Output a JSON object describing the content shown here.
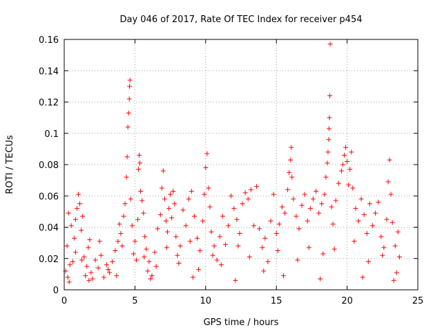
{
  "chart_data": {
    "type": "scatter",
    "title": "Day 046 of 2017, Rate Of TEC Index for receiver p454",
    "xlabel": "GPS time / hours",
    "ylabel": "ROTI / TECUs",
    "xlim": [
      0,
      25
    ],
    "ylim": [
      0,
      0.16
    ],
    "xticks": [
      0,
      5,
      10,
      15,
      20,
      25
    ],
    "yticks": [
      0,
      0.02,
      0.04,
      0.06,
      0.08,
      0.1,
      0.12,
      0.14,
      0.16
    ],
    "xtick_labels": [
      "0",
      "5",
      "10",
      "15",
      "20",
      "25"
    ],
    "ytick_labels": [
      "0",
      "0.02",
      "0.04",
      "0.06",
      "0.08",
      "0.1",
      "0.12",
      "0.14",
      "0.16"
    ],
    "grid": true,
    "marker": "+",
    "color": "#ff0000",
    "series": [
      {
        "name": "ROTI",
        "points": [
          [
            0.1,
            0.012
          ],
          [
            0.2,
            0.028
          ],
          [
            0.3,
            0.049
          ],
          [
            0.35,
            0.005
          ],
          [
            0.5,
            0.041
          ],
          [
            0.6,
            0.018
          ],
          [
            0.7,
            0.033
          ],
          [
            0.8,
            0.045
          ],
          [
            0.9,
            0.052
          ],
          [
            1.0,
            0.061
          ],
          [
            1.1,
            0.055
          ],
          [
            1.2,
            0.038
          ],
          [
            1.3,
            0.047
          ],
          [
            1.4,
            0.021
          ],
          [
            1.5,
            0.009
          ],
          [
            1.6,
            0.015
          ],
          [
            1.7,
            0.027
          ],
          [
            1.8,
            0.032
          ],
          [
            1.9,
            0.011
          ],
          [
            2.0,
            0.007
          ],
          [
            2.2,
            0.019
          ],
          [
            2.4,
            0.014
          ],
          [
            2.6,
            0.022
          ],
          [
            2.8,
            0.008
          ],
          [
            3.0,
            0.016
          ],
          [
            3.2,
            0.011
          ],
          [
            3.4,
            0.018
          ],
          [
            3.6,
            0.025
          ],
          [
            3.8,
            0.031
          ],
          [
            3.9,
            0.042
          ],
          [
            4.0,
            0.036
          ],
          [
            4.1,
            0.028
          ],
          [
            4.2,
            0.047
          ],
          [
            4.3,
            0.055
          ],
          [
            4.4,
            0.072
          ],
          [
            4.45,
            0.085
          ],
          [
            4.5,
            0.104
          ],
          [
            4.55,
            0.113
          ],
          [
            4.6,
            0.122
          ],
          [
            4.62,
            0.13
          ],
          [
            4.65,
            0.134
          ],
          [
            4.7,
            0.058
          ],
          [
            4.8,
            0.041
          ],
          [
            4.9,
            0.023
          ],
          [
            5.0,
            0.031
          ],
          [
            5.1,
            0.019
          ],
          [
            5.2,
            0.045
          ],
          [
            5.25,
            0.077
          ],
          [
            5.3,
            0.086
          ],
          [
            5.35,
            0.081
          ],
          [
            5.4,
            0.063
          ],
          [
            5.5,
            0.057
          ],
          [
            5.6,
            0.049
          ],
          [
            5.7,
            0.034
          ],
          [
            5.8,
            0.026
          ],
          [
            5.9,
            0.012
          ],
          [
            6.0,
            0.018
          ],
          [
            6.2,
            0.009
          ],
          [
            6.4,
            0.024
          ],
          [
            6.6,
            0.039
          ],
          [
            6.8,
            0.048
          ],
          [
            6.9,
            0.065
          ],
          [
            7.0,
            0.076
          ],
          [
            7.1,
            0.058
          ],
          [
            7.2,
            0.044
          ],
          [
            7.3,
            0.037
          ],
          [
            7.4,
            0.052
          ],
          [
            7.5,
            0.061
          ],
          [
            7.6,
            0.046
          ],
          [
            7.7,
            0.063
          ],
          [
            7.8,
            0.055
          ],
          [
            7.9,
            0.034
          ],
          [
            8.0,
            0.022
          ],
          [
            8.2,
            0.028
          ],
          [
            8.4,
            0.051
          ],
          [
            8.6,
            0.041
          ],
          [
            8.8,
            0.058
          ],
          [
            9.0,
            0.063
          ],
          [
            9.2,
            0.047
          ],
          [
            9.4,
            0.033
          ],
          [
            9.6,
            0.025
          ],
          [
            9.8,
            0.044
          ],
          [
            9.9,
            0.061
          ],
          [
            10.0,
            0.078
          ],
          [
            10.1,
            0.087
          ],
          [
            10.2,
            0.065
          ],
          [
            10.3,
            0.053
          ],
          [
            10.4,
            0.037
          ],
          [
            10.6,
            0.028
          ],
          [
            10.8,
            0.019
          ],
          [
            11.0,
            0.034
          ],
          [
            11.2,
            0.047
          ],
          [
            11.4,
            0.029
          ],
          [
            11.6,
            0.041
          ],
          [
            11.8,
            0.06
          ],
          [
            12.0,
            0.052
          ],
          [
            12.2,
            0.045
          ],
          [
            12.4,
            0.036
          ],
          [
            12.6,
            0.055
          ],
          [
            12.8,
            0.062
          ],
          [
            13.0,
            0.058
          ],
          [
            13.2,
            0.064
          ],
          [
            13.4,
            0.041
          ],
          [
            13.6,
            0.066
          ],
          [
            13.8,
            0.039
          ],
          [
            14.0,
            0.027
          ],
          [
            14.2,
            0.033
          ],
          [
            14.4,
            0.018
          ],
          [
            14.6,
            0.044
          ],
          [
            14.8,
            0.061
          ],
          [
            15.0,
            0.036
          ],
          [
            15.2,
            0.042
          ],
          [
            15.4,
            0.053
          ],
          [
            15.6,
            0.049
          ],
          [
            15.8,
            0.064
          ],
          [
            15.9,
            0.075
          ],
          [
            16.0,
            0.083
          ],
          [
            16.05,
            0.091
          ],
          [
            16.1,
            0.072
          ],
          [
            16.2,
            0.058
          ],
          [
            16.4,
            0.047
          ],
          [
            16.6,
            0.039
          ],
          [
            16.8,
            0.054
          ],
          [
            17.0,
            0.061
          ],
          [
            17.2,
            0.044
          ],
          [
            17.4,
            0.052
          ],
          [
            17.6,
            0.058
          ],
          [
            17.8,
            0.063
          ],
          [
            18.0,
            0.049
          ],
          [
            18.2,
            0.055
          ],
          [
            18.4,
            0.061
          ],
          [
            18.5,
            0.072
          ],
          [
            18.6,
            0.081
          ],
          [
            18.65,
            0.088
          ],
          [
            18.7,
            0.096
          ],
          [
            18.72,
            0.103
          ],
          [
            18.75,
            0.11
          ],
          [
            18.78,
            0.124
          ],
          [
            18.8,
            0.157
          ],
          [
            18.9,
            0.053
          ],
          [
            19.0,
            0.042
          ],
          [
            19.2,
            0.057
          ],
          [
            19.4,
            0.068
          ],
          [
            19.6,
            0.076
          ],
          [
            19.7,
            0.08
          ],
          [
            19.8,
            0.086
          ],
          [
            19.9,
            0.091
          ],
          [
            20.0,
            0.082
          ],
          [
            20.1,
            0.067
          ],
          [
            20.2,
            0.077
          ],
          [
            20.3,
            0.088
          ],
          [
            20.4,
            0.065
          ],
          [
            20.6,
            0.052
          ],
          [
            20.8,
            0.044
          ],
          [
            21.0,
            0.058
          ],
          [
            21.2,
            0.048
          ],
          [
            21.4,
            0.036
          ],
          [
            21.6,
            0.055
          ],
          [
            21.8,
            0.041
          ],
          [
            22.0,
            0.049
          ],
          [
            22.2,
            0.056
          ],
          [
            22.4,
            0.034
          ],
          [
            22.6,
            0.027
          ],
          [
            22.8,
            0.045
          ],
          [
            22.9,
            0.069
          ],
          [
            23.0,
            0.083
          ],
          [
            23.1,
            0.061
          ],
          [
            23.2,
            0.043
          ],
          [
            23.4,
            0.028
          ],
          [
            23.6,
            0.037
          ],
          [
            23.7,
            0.021
          ],
          [
            0.4,
            0.016
          ],
          [
            0.8,
            0.024
          ],
          [
            1.25,
            0.019
          ],
          [
            2.5,
            0.031
          ],
          [
            3.1,
            0.013
          ],
          [
            5.65,
            0.021
          ],
          [
            6.5,
            0.015
          ],
          [
            7.25,
            0.027
          ],
          [
            8.1,
            0.017
          ],
          [
            8.9,
            0.031
          ],
          [
            9.5,
            0.013
          ],
          [
            10.5,
            0.022
          ],
          [
            11.1,
            0.016
          ],
          [
            12.3,
            0.028
          ],
          [
            13.1,
            0.021
          ],
          [
            14.1,
            0.012
          ],
          [
            15.1,
            0.025
          ],
          [
            16.5,
            0.019
          ],
          [
            17.3,
            0.027
          ],
          [
            18.3,
            0.023
          ],
          [
            19.1,
            0.026
          ],
          [
            20.5,
            0.031
          ],
          [
            21.5,
            0.018
          ],
          [
            22.5,
            0.022
          ],
          [
            23.5,
            0.011
          ],
          [
            0.25,
            0.008
          ],
          [
            1.75,
            0.006
          ],
          [
            3.7,
            0.009
          ],
          [
            6.1,
            0.007
          ],
          [
            9.1,
            0.008
          ],
          [
            12.1,
            0.006
          ],
          [
            15.5,
            0.009
          ],
          [
            18.1,
            0.007
          ],
          [
            21.1,
            0.008
          ],
          [
            23.3,
            0.006
          ]
        ]
      }
    ]
  }
}
